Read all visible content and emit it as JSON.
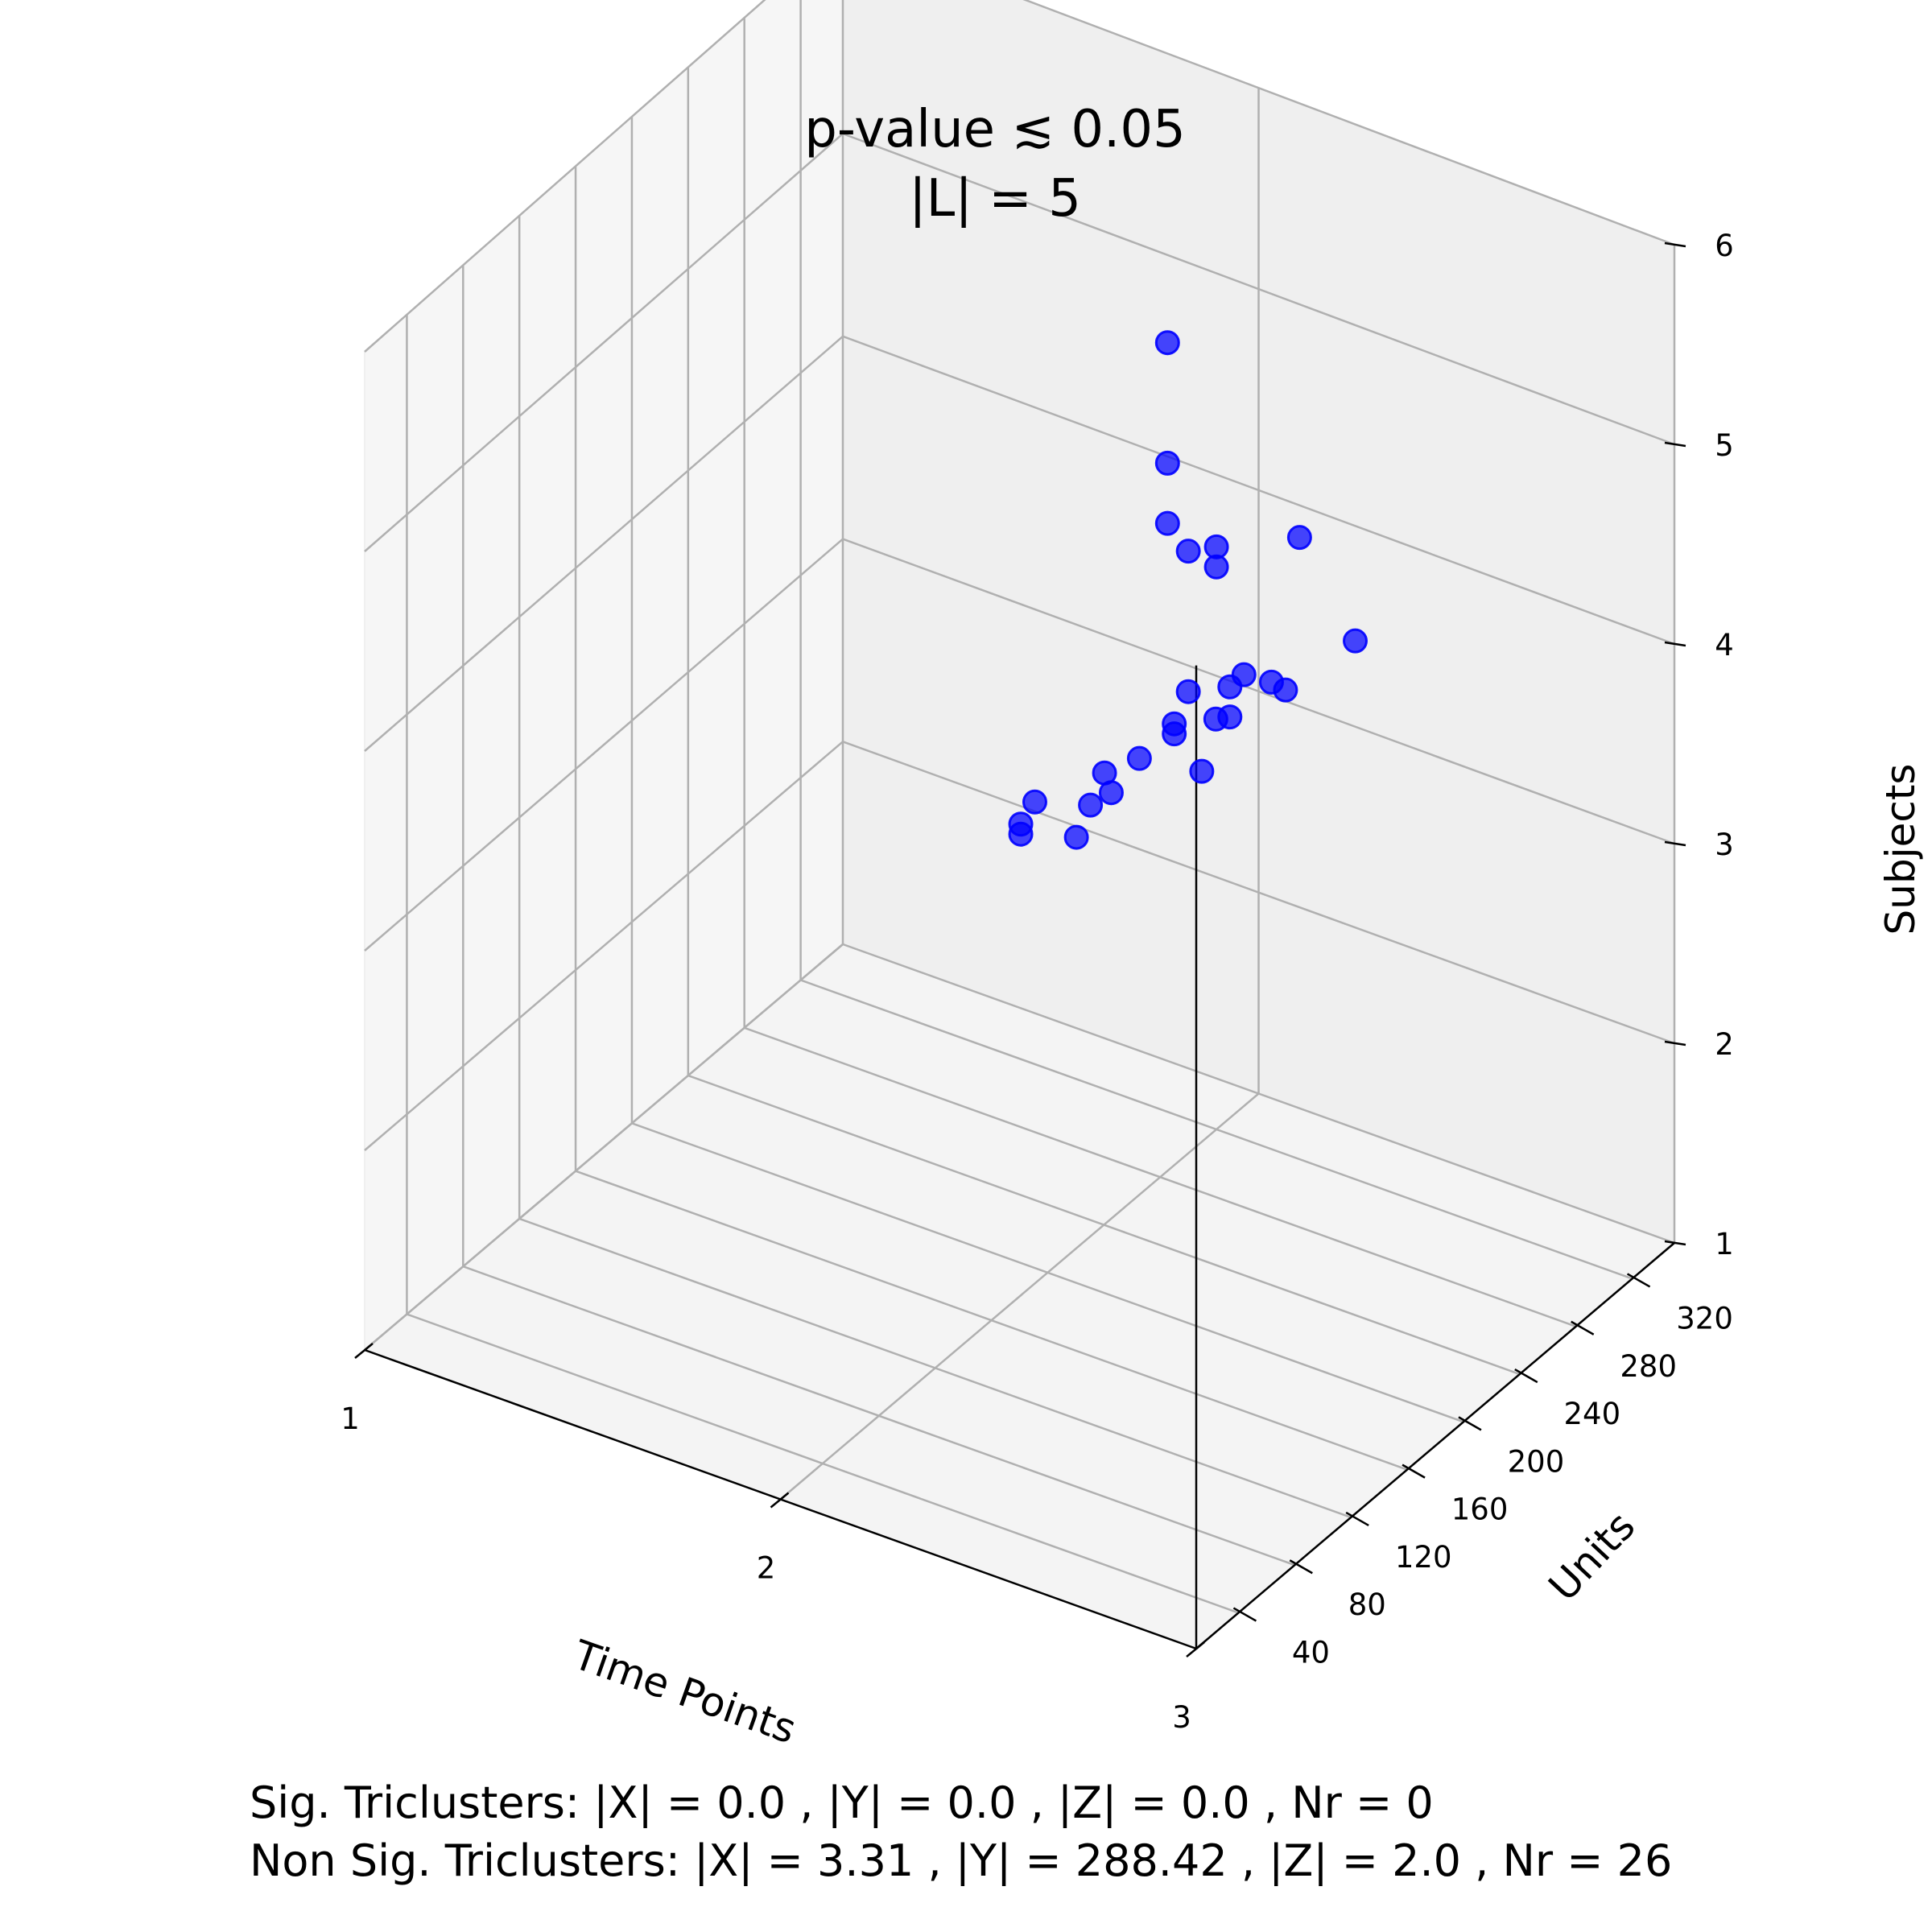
{
  "chart_data": {
    "type": "scatter",
    "projection": "3d",
    "title_lines": [
      "p-value ≲ 0.05",
      "|L| = 5"
    ],
    "xlabel": "Time Points",
    "ylabel": "Units",
    "zlabel": "Subjects",
    "xlim": [
      1,
      3
    ],
    "ylim": [
      10,
      350
    ],
    "zlim": [
      1,
      6
    ],
    "x_ticks": [
      1,
      2,
      3
    ],
    "y_ticks": [
      40,
      80,
      120,
      160,
      200,
      240,
      280,
      320
    ],
    "z_ticks": [
      1,
      2,
      3,
      4,
      5,
      6
    ],
    "grid": true,
    "marker_color": "#0000ff",
    "points": [
      {
        "x": 1.95,
        "y": 300,
        "z": 5.0
      },
      {
        "x": 1.95,
        "y": 300,
        "z": 4.4
      },
      {
        "x": 1.95,
        "y": 300,
        "z": 4.1
      },
      {
        "x": 2.0,
        "y": 300,
        "z": 4.0
      },
      {
        "x": 2.0,
        "y": 320,
        "z": 3.9
      },
      {
        "x": 2.2,
        "y": 320,
        "z": 4.1
      },
      {
        "x": 2.0,
        "y": 320,
        "z": 3.8
      },
      {
        "x": 2.3,
        "y": 330,
        "z": 3.6
      },
      {
        "x": 2.2,
        "y": 300,
        "z": 3.5
      },
      {
        "x": 2.2,
        "y": 310,
        "z": 3.4
      },
      {
        "x": 2.1,
        "y": 300,
        "z": 3.4
      },
      {
        "x": 2.1,
        "y": 310,
        "z": 3.4
      },
      {
        "x": 2.1,
        "y": 290,
        "z": 3.3
      },
      {
        "x": 2.0,
        "y": 300,
        "z": 3.3
      },
      {
        "x": 2.1,
        "y": 300,
        "z": 3.25
      },
      {
        "x": 2.0,
        "y": 290,
        "z": 3.2
      },
      {
        "x": 2.0,
        "y": 290,
        "z": 3.15
      },
      {
        "x": 2.1,
        "y": 280,
        "z": 3.1
      },
      {
        "x": 1.95,
        "y": 280,
        "z": 3.05
      },
      {
        "x": 1.95,
        "y": 260,
        "z": 3.0
      },
      {
        "x": 1.9,
        "y": 270,
        "z": 3.0
      },
      {
        "x": 1.9,
        "y": 260,
        "z": 2.9
      },
      {
        "x": 1.8,
        "y": 250,
        "z": 2.9
      },
      {
        "x": 1.8,
        "y": 240,
        "z": 2.85
      },
      {
        "x": 1.8,
        "y": 240,
        "z": 2.8
      },
      {
        "x": 1.9,
        "y": 250,
        "z": 2.8
      }
    ]
  },
  "footer": {
    "sig_line": "Sig. Triclusters: |X| = 0.0 , |Y| = 0.0 , |Z| = 0.0 , Nr = 0",
    "nonsig_line": "Non Sig. Triclusters: |X| = 3.31 , |Y| = 288.42 , |Z| = 2.0 , Nr = 26"
  }
}
